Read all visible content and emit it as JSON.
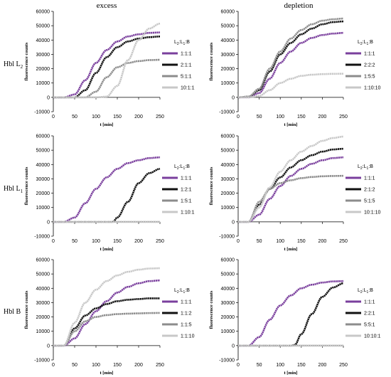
{
  "figure": {
    "column_titles": [
      "excess",
      "depletion"
    ],
    "row_labels": [
      "Hbl L",
      "Hbl L",
      "Hbl B"
    ],
    "row_label_subscripts": [
      "2",
      "1",
      ""
    ]
  },
  "colors": {
    "purple": "#7a3f9d",
    "black": "#111111",
    "gray": "#8c8c8c",
    "lightgray": "#c8c8c8"
  },
  "chart_data": [
    {
      "type": "line",
      "panel": "excess-L2",
      "xlabel": "t [min]",
      "ylabel": "fluorescence counts",
      "xlim": [
        0,
        250
      ],
      "ylim": [
        -10000,
        60000
      ],
      "xticks": [
        0,
        50,
        100,
        150,
        200,
        250
      ],
      "yticks": [
        -10000,
        0,
        10000,
        20000,
        30000,
        40000,
        50000,
        60000
      ],
      "legend_title": "L",
      "legend_title_sub1": "2",
      "legend_title_sub2": "1",
      "legend_title_tail": ":B",
      "series": [
        {
          "name": "1:1:1",
          "color": "purple",
          "x": [
            0,
            25,
            50,
            75,
            100,
            125,
            150,
            175,
            200,
            225,
            250
          ],
          "y": [
            0,
            0,
            2000,
            12000,
            24000,
            33000,
            39000,
            42500,
            44000,
            45000,
            45300
          ]
        },
        {
          "name": "2:1:1",
          "color": "black",
          "x": [
            0,
            25,
            50,
            75,
            100,
            125,
            150,
            175,
            200,
            225,
            250
          ],
          "y": [
            0,
            0,
            0,
            5000,
            17000,
            28000,
            35000,
            39000,
            41000,
            42000,
            42500
          ]
        },
        {
          "name": "5:1:1",
          "color": "gray",
          "x": [
            0,
            25,
            50,
            75,
            100,
            125,
            150,
            175,
            200,
            225,
            250
          ],
          "y": [
            0,
            0,
            0,
            0,
            4000,
            14000,
            21000,
            24000,
            25300,
            26000,
            26200
          ]
        },
        {
          "name": "10:1:1",
          "color": "lightgray",
          "x": [
            0,
            25,
            50,
            75,
            100,
            125,
            150,
            175,
            200,
            225,
            250
          ],
          "y": [
            0,
            0,
            0,
            0,
            0,
            500,
            8000,
            26000,
            40000,
            48000,
            51500
          ]
        }
      ]
    },
    {
      "type": "line",
      "panel": "depletion-L2",
      "xlabel": "t [min]",
      "ylabel": "fluorescence counts",
      "xlim": [
        0,
        250
      ],
      "ylim": [
        -10000,
        60000
      ],
      "xticks": [
        0,
        50,
        100,
        150,
        200,
        250
      ],
      "yticks": [
        -10000,
        0,
        10000,
        20000,
        30000,
        40000,
        50000,
        60000
      ],
      "legend_title": "L",
      "legend_title_sub1": "2",
      "legend_title_sub2": "1",
      "legend_title_tail": ":B",
      "series": [
        {
          "name": "1:1:1",
          "color": "purple",
          "x": [
            0,
            25,
            50,
            75,
            100,
            125,
            150,
            175,
            200,
            225,
            250
          ],
          "y": [
            0,
            0,
            3000,
            13000,
            24000,
            32000,
            38000,
            41500,
            43500,
            44500,
            45000
          ]
        },
        {
          "name": "2:2:2",
          "color": "black",
          "x": [
            0,
            25,
            50,
            75,
            100,
            125,
            150,
            175,
            200,
            225,
            250
          ],
          "y": [
            0,
            500,
            5000,
            18000,
            30000,
            38000,
            44000,
            48000,
            51000,
            52500,
            53000
          ]
        },
        {
          "name": "1:5:5",
          "color": "gray",
          "x": [
            0,
            25,
            50,
            75,
            100,
            125,
            150,
            175,
            200,
            225,
            250
          ],
          "y": [
            0,
            500,
            6000,
            20000,
            32000,
            41000,
            47000,
            51000,
            53500,
            54500,
            55000
          ]
        },
        {
          "name": "1:10:10",
          "color": "lightgray",
          "x": [
            0,
            25,
            50,
            75,
            100,
            125,
            150,
            175,
            200,
            225,
            250
          ],
          "y": [
            0,
            0,
            1000,
            5000,
            10000,
            13000,
            15000,
            15800,
            16200,
            16400,
            16500
          ]
        }
      ]
    },
    {
      "type": "line",
      "panel": "excess-L1",
      "xlabel": "t [min]",
      "ylabel": "fluorescence counts",
      "xlim": [
        0,
        250
      ],
      "ylim": [
        -10000,
        60000
      ],
      "xticks": [
        0,
        50,
        100,
        150,
        200,
        250
      ],
      "yticks": [
        -10000,
        0,
        10000,
        20000,
        30000,
        40000,
        50000,
        60000
      ],
      "legend_title": "L",
      "legend_title_sub1": "2",
      "legend_title_sub2": "1",
      "legend_title_tail": ":B",
      "series": [
        {
          "name": "1:1:1",
          "color": "purple",
          "x": [
            0,
            25,
            50,
            75,
            100,
            125,
            150,
            175,
            200,
            225,
            250
          ],
          "y": [
            0,
            0,
            3000,
            13000,
            23000,
            31000,
            37000,
            41000,
            43000,
            44500,
            45000
          ]
        },
        {
          "name": "1:2:1",
          "color": "black",
          "x": [
            0,
            25,
            50,
            75,
            100,
            125,
            140,
            150,
            175,
            200,
            225,
            250
          ],
          "y": [
            0,
            0,
            0,
            0,
            0,
            0,
            0,
            3000,
            14000,
            27000,
            34000,
            37000
          ]
        },
        {
          "name": "1:5:1",
          "color": "gray",
          "x": [
            0,
            250
          ],
          "y": [
            0,
            0
          ]
        },
        {
          "name": "1:10:1",
          "color": "lightgray",
          "x": [
            0,
            250
          ],
          "y": [
            0,
            0
          ]
        }
      ]
    },
    {
      "type": "line",
      "panel": "depletion-L1",
      "xlabel": "t [min]",
      "ylabel": "fluorescence counts",
      "xlim": [
        0,
        250
      ],
      "ylim": [
        -10000,
        60000
      ],
      "xticks": [
        0,
        50,
        100,
        150,
        200,
        250
      ],
      "yticks": [
        -10000,
        0,
        10000,
        20000,
        30000,
        40000,
        50000,
        60000
      ],
      "legend_title": "L",
      "legend_title_sub1": "2",
      "legend_title_sub2": "1",
      "legend_title_tail": ":B",
      "series": [
        {
          "name": "1:1:1",
          "color": "purple",
          "x": [
            0,
            25,
            50,
            75,
            100,
            125,
            150,
            175,
            200,
            225,
            250
          ],
          "y": [
            0,
            0,
            5000,
            16000,
            25000,
            32000,
            37000,
            40500,
            43000,
            44500,
            45000
          ]
        },
        {
          "name": "2:1:2",
          "color": "black",
          "x": [
            0,
            25,
            50,
            75,
            100,
            125,
            150,
            175,
            200,
            225,
            250
          ],
          "y": [
            0,
            0,
            12000,
            23000,
            31000,
            38000,
            43000,
            46500,
            49000,
            50500,
            51000
          ]
        },
        {
          "name": "5:1:5",
          "color": "gray",
          "x": [
            0,
            25,
            50,
            75,
            100,
            125,
            150,
            175,
            200,
            225,
            250
          ],
          "y": [
            0,
            0,
            14000,
            23000,
            27000,
            29000,
            30500,
            31300,
            31800,
            32000,
            32100
          ]
        },
        {
          "name": "10:1:10",
          "color": "lightgray",
          "x": [
            0,
            25,
            50,
            75,
            100,
            125,
            150,
            175,
            200,
            225,
            250
          ],
          "y": [
            0,
            0,
            10000,
            24000,
            35000,
            43000,
            49000,
            53000,
            56500,
            58500,
            59500
          ]
        }
      ]
    },
    {
      "type": "line",
      "panel": "excess-B",
      "xlabel": "t [min]",
      "ylabel": "fluorescence counts",
      "xlim": [
        0,
        250
      ],
      "ylim": [
        -10000,
        60000
      ],
      "xticks": [
        0,
        50,
        100,
        150,
        200,
        250
      ],
      "yticks": [
        -10000,
        0,
        10000,
        20000,
        30000,
        40000,
        50000,
        60000
      ],
      "legend_title": "L",
      "legend_title_sub1": "2",
      "legend_title_sub2": "1",
      "legend_title_tail": ":B",
      "series": [
        {
          "name": "1:1:1",
          "color": "purple",
          "x": [
            0,
            25,
            50,
            75,
            100,
            125,
            150,
            175,
            200,
            225,
            250
          ],
          "y": [
            0,
            0,
            5000,
            15000,
            24000,
            31000,
            37000,
            41000,
            43500,
            45000,
            45500
          ]
        },
        {
          "name": "1:1:2",
          "color": "black",
          "x": [
            0,
            25,
            50,
            75,
            100,
            125,
            150,
            175,
            200,
            225,
            250
          ],
          "y": [
            0,
            0,
            12000,
            21000,
            26000,
            29000,
            31000,
            32000,
            32500,
            33000,
            33000
          ]
        },
        {
          "name": "1:1:5",
          "color": "gray",
          "x": [
            0,
            25,
            50,
            75,
            100,
            125,
            150,
            175,
            200,
            225,
            250
          ],
          "y": [
            0,
            0,
            10000,
            17000,
            20000,
            21300,
            22000,
            22300,
            22500,
            22700,
            22800
          ]
        },
        {
          "name": "1:1:10",
          "color": "lightgray",
          "x": [
            0,
            25,
            50,
            75,
            100,
            125,
            150,
            175,
            200,
            225,
            250
          ],
          "y": [
            0,
            0,
            16000,
            30000,
            39000,
            45000,
            49000,
            51500,
            53000,
            53800,
            54000
          ]
        }
      ]
    },
    {
      "type": "line",
      "panel": "depletion-B",
      "xlabel": "t [min]",
      "ylabel": "fluorescence counts",
      "xlim": [
        0,
        250
      ],
      "ylim": [
        -10000,
        60000
      ],
      "xticks": [
        0,
        50,
        100,
        150,
        200,
        250
      ],
      "yticks": [
        -10000,
        0,
        10000,
        20000,
        30000,
        40000,
        50000,
        60000
      ],
      "legend_title": "L",
      "legend_title_sub1": "2",
      "legend_title_sub2": "1",
      "legend_title_tail": ":B",
      "series": [
        {
          "name": "1:1:1",
          "color": "purple",
          "x": [
            0,
            25,
            50,
            75,
            100,
            125,
            150,
            175,
            200,
            225,
            250
          ],
          "y": [
            0,
            0,
            6000,
            18000,
            28000,
            35000,
            40000,
            42500,
            44000,
            44800,
            45000
          ]
        },
        {
          "name": "2:2:1",
          "color": "black",
          "x": [
            0,
            25,
            50,
            75,
            100,
            125,
            135,
            150,
            175,
            200,
            225,
            250
          ],
          "y": [
            0,
            0,
            0,
            0,
            0,
            0,
            500,
            8000,
            22000,
            34000,
            40500,
            43500
          ]
        },
        {
          "name": "5:5:1",
          "color": "gray",
          "x": [
            0,
            250
          ],
          "y": [
            0,
            0
          ]
        },
        {
          "name": "10:10:1",
          "color": "lightgray",
          "x": [
            0,
            250
          ],
          "y": [
            0,
            0
          ]
        }
      ]
    }
  ]
}
